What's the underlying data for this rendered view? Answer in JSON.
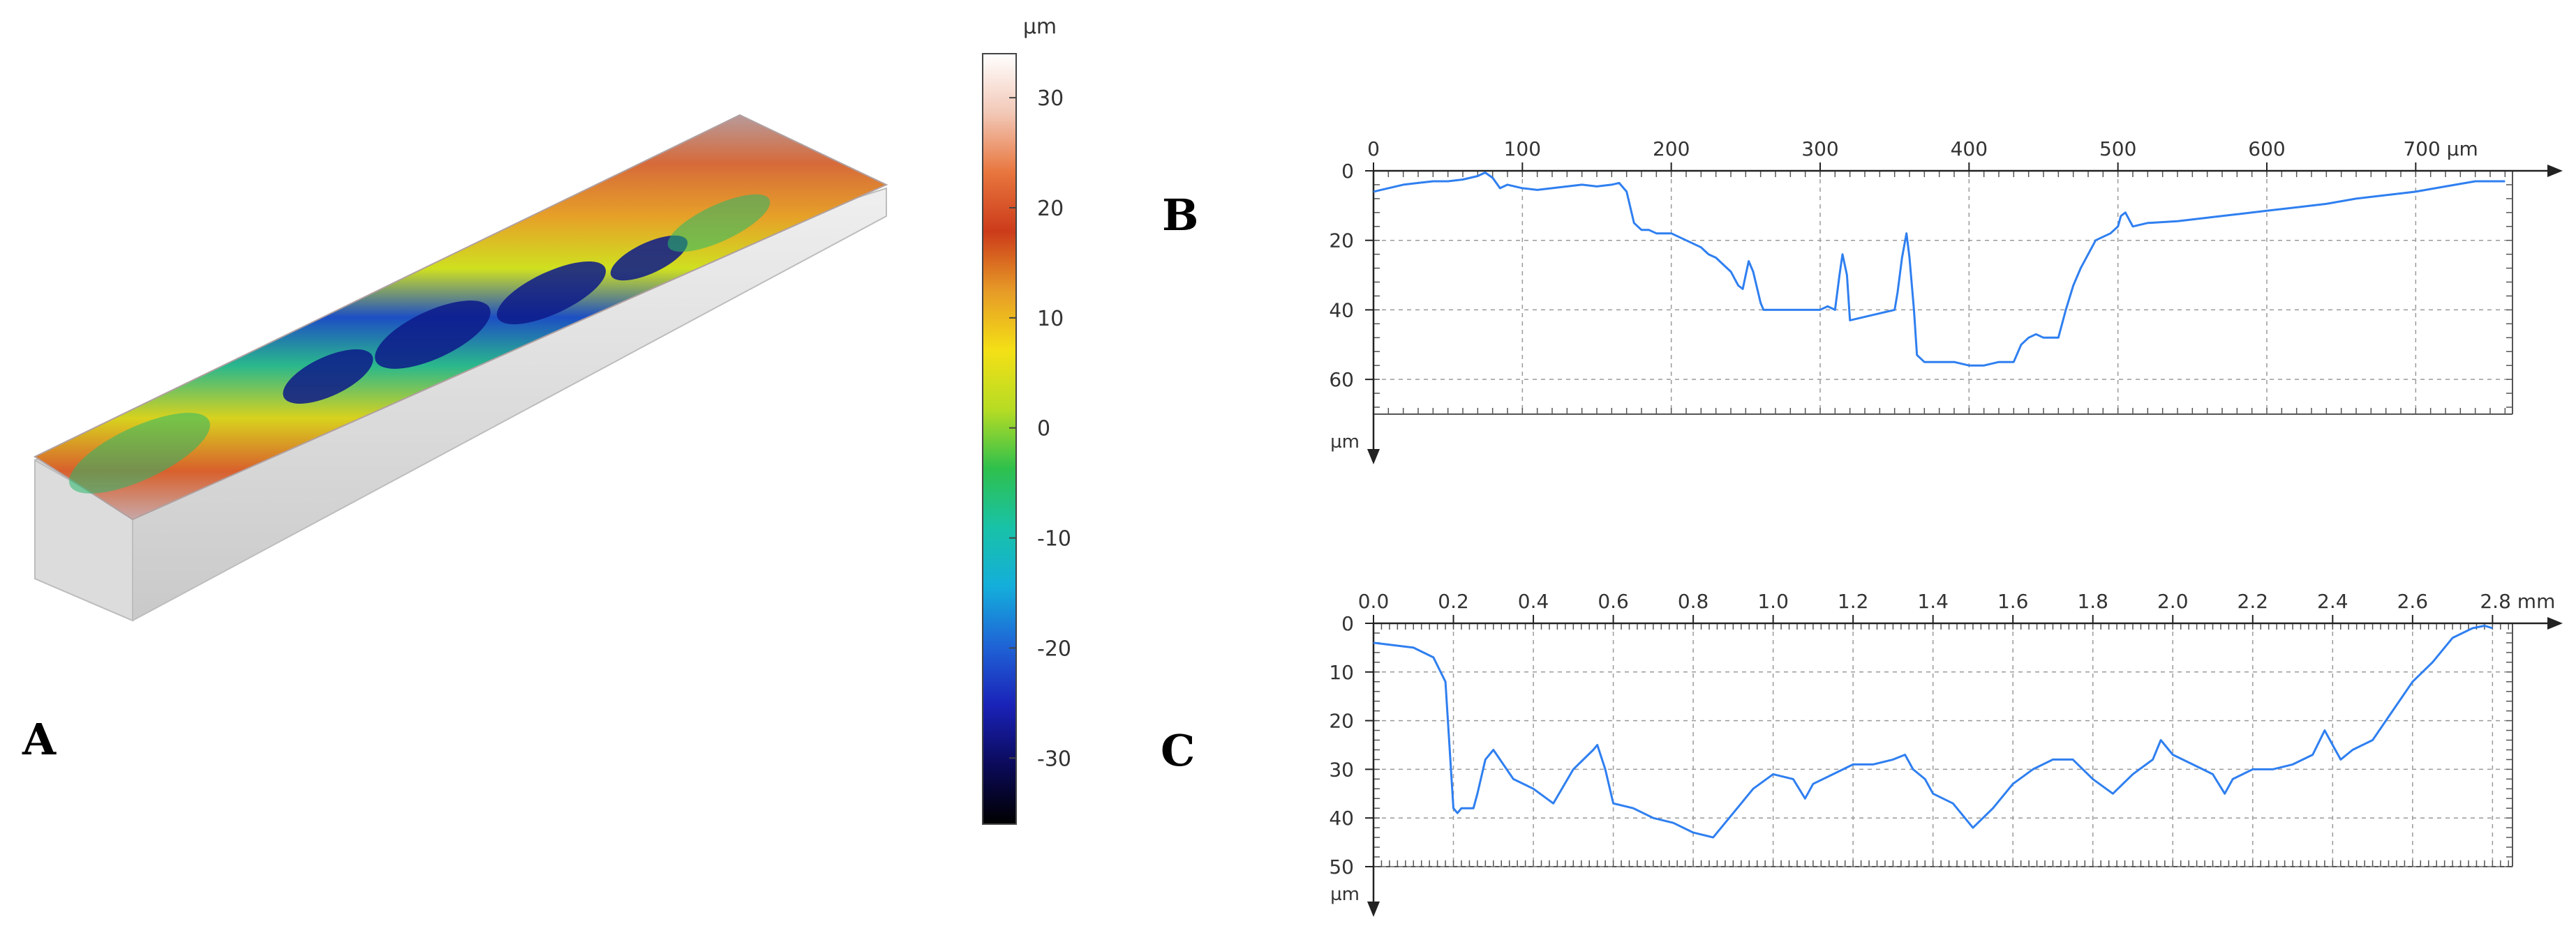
{
  "panel_labels": {
    "a": "A",
    "b": "B",
    "c": "C"
  },
  "colors": {
    "profile_line": "#2f7ff0",
    "grid": "#9a9a9a",
    "axis": "#555555",
    "colormap": [
      "#ffffff",
      "#f2c8b7",
      "#e8763e",
      "#cc3b1a",
      "#e69a27",
      "#f4e016",
      "#b6dc24",
      "#2fc04c",
      "#18c2a7",
      "#14aedb",
      "#1f63d6",
      "#1a22b8",
      "#0b0a5a",
      "#000000"
    ]
  },
  "chart_data": [
    {
      "id": "A",
      "type": "heatmap",
      "title": "",
      "colorbar_unit": "µm",
      "colorbar_ticks": [
        30,
        20,
        10,
        0,
        -10,
        -20,
        -30
      ],
      "colorbar_range": [
        -36,
        34
      ]
    },
    {
      "id": "B",
      "type": "line",
      "title": "",
      "x_unit": "µm",
      "y_unit": "µm",
      "x_ticks": [
        0,
        100,
        200,
        300,
        400,
        500,
        600,
        700
      ],
      "x_tick_labels": [
        "0",
        "100",
        "200",
        "300",
        "400",
        "500",
        "600",
        "700 µm"
      ],
      "y_ticks": [
        0,
        20,
        40,
        60
      ],
      "y_tick_labels": [
        "0",
        "20",
        "40",
        "60"
      ],
      "xlim": [
        0,
        765
      ],
      "ylim": [
        0,
        70
      ],
      "y_inverted": true,
      "grid": true,
      "series": [
        {
          "x": [
            0,
            10,
            20,
            30,
            40,
            50,
            60,
            70,
            75,
            80,
            85,
            90,
            100,
            110,
            120,
            130,
            140,
            150,
            160,
            165,
            170,
            175,
            180,
            185,
            190,
            200,
            210,
            220,
            225,
            230,
            235,
            240,
            245,
            248,
            250,
            252,
            255,
            260,
            262,
            265,
            270,
            280,
            290,
            300,
            305,
            310,
            313,
            315,
            318,
            320,
            330,
            340,
            350,
            352,
            355,
            358,
            360,
            363,
            365,
            370,
            380,
            390,
            400,
            410,
            420,
            430,
            435,
            440,
            445,
            450,
            455,
            460,
            465,
            470,
            475,
            480,
            485,
            490,
            495,
            500,
            502,
            505,
            510,
            520,
            540,
            560,
            580,
            600,
            620,
            640,
            660,
            680,
            700,
            720,
            740,
            760
          ],
          "y": [
            6,
            5,
            4,
            3.5,
            3,
            3,
            2.5,
            1.5,
            0.5,
            2,
            5,
            4,
            5,
            5.5,
            5,
            4.5,
            4,
            4.5,
            4,
            3.5,
            6,
            15,
            17,
            17,
            18,
            18,
            20,
            22,
            24,
            25,
            27,
            29,
            33,
            34,
            30,
            26,
            29,
            38,
            40,
            40,
            40,
            40,
            40,
            40,
            39,
            40,
            30,
            24,
            30,
            43,
            42,
            41,
            40,
            35,
            25,
            18,
            25,
            40,
            53,
            55,
            55,
            55,
            56,
            56,
            55,
            55,
            50,
            48,
            47,
            48,
            48,
            48,
            40,
            33,
            28,
            24,
            20,
            19,
            18,
            16,
            13,
            12,
            16,
            15,
            14.5,
            13.5,
            12.5,
            11.5,
            10.5,
            9.5,
            8,
            7,
            6,
            4.5,
            3,
            3
          ]
        }
      ]
    },
    {
      "id": "C",
      "type": "line",
      "title": "",
      "x_unit": "mm",
      "y_unit": "µm",
      "x_ticks": [
        0.0,
        0.2,
        0.4,
        0.6,
        0.8,
        1.0,
        1.2,
        1.4,
        1.6,
        1.8,
        2.0,
        2.2,
        2.4,
        2.6,
        2.8
      ],
      "x_tick_labels": [
        "0.0",
        "0.2",
        "0.4",
        "0.6",
        "0.8",
        "1.0",
        "1.2",
        "1.4",
        "1.6",
        "1.8",
        "2.0",
        "2.2",
        "2.4",
        "2.6",
        "2.8 mm"
      ],
      "y_ticks": [
        0,
        10,
        20,
        30,
        40,
        50
      ],
      "y_tick_labels": [
        "0",
        "10",
        "20",
        "30",
        "40",
        "50"
      ],
      "xlim": [
        0,
        2.85
      ],
      "ylim": [
        0,
        50
      ],
      "y_inverted": true,
      "grid": true,
      "series": [
        {
          "x": [
            0.0,
            0.05,
            0.1,
            0.15,
            0.18,
            0.19,
            0.2,
            0.21,
            0.22,
            0.25,
            0.26,
            0.28,
            0.3,
            0.35,
            0.4,
            0.45,
            0.5,
            0.55,
            0.56,
            0.58,
            0.6,
            0.65,
            0.7,
            0.75,
            0.8,
            0.85,
            0.9,
            0.95,
            1.0,
            1.05,
            1.08,
            1.1,
            1.15,
            1.2,
            1.25,
            1.3,
            1.33,
            1.35,
            1.38,
            1.4,
            1.45,
            1.5,
            1.55,
            1.6,
            1.65,
            1.7,
            1.75,
            1.8,
            1.85,
            1.9,
            1.95,
            1.97,
            2.0,
            2.05,
            2.1,
            2.13,
            2.15,
            2.2,
            2.25,
            2.3,
            2.35,
            2.38,
            2.4,
            2.42,
            2.45,
            2.5,
            2.55,
            2.6,
            2.65,
            2.7,
            2.75,
            2.78,
            2.8
          ],
          "y": [
            4,
            4.5,
            5,
            7,
            12,
            25,
            38,
            39,
            38,
            38,
            35,
            28,
            26,
            32,
            34,
            37,
            30,
            26,
            25,
            30,
            37,
            38,
            40,
            41,
            43,
            44,
            39,
            34,
            31,
            32,
            36,
            33,
            31,
            29,
            29,
            28,
            27,
            30,
            32,
            35,
            37,
            42,
            38,
            33,
            30,
            28,
            28,
            32,
            35,
            31,
            28,
            24,
            27,
            29,
            31,
            35,
            32,
            30,
            30,
            29,
            27,
            22,
            25,
            28,
            26,
            24,
            18,
            12,
            8,
            3,
            1,
            0.5,
            1
          ]
        }
      ]
    }
  ]
}
